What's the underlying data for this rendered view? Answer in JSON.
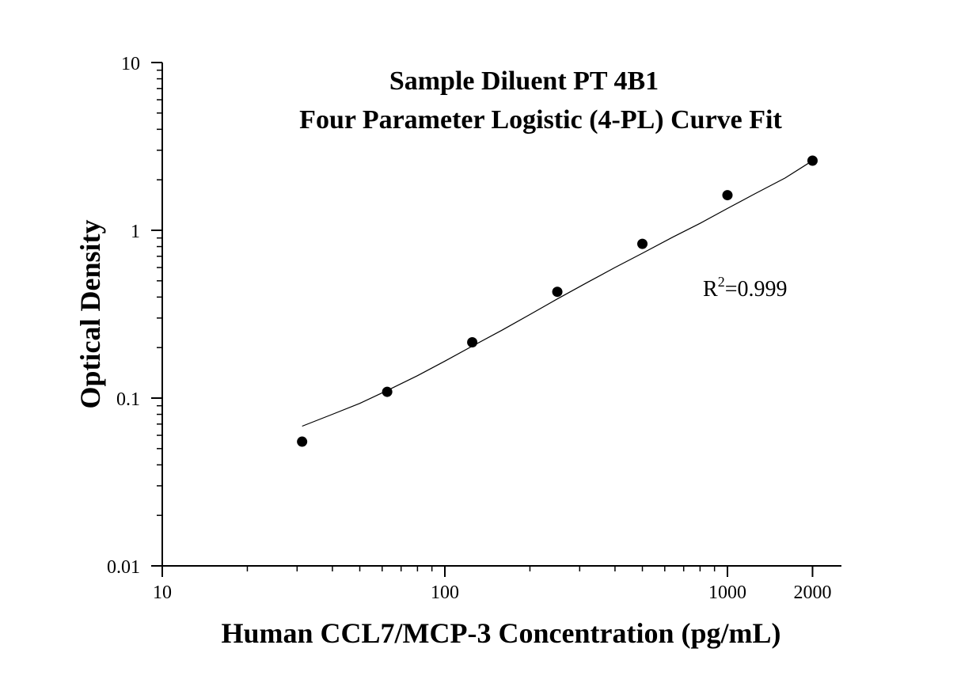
{
  "chart_data": {
    "type": "scatter",
    "title": "Sample Diluent PT 4B1",
    "subtitle": "Four Parameter Logistic (4-PL) Curve Fit",
    "xlabel": "Human CCL7/MCP-3 Concentration (pg/mL)",
    "ylabel": "Optical Density",
    "x_scale": "log",
    "y_scale": "log",
    "xlim": [
      10,
      2800
    ],
    "ylim": [
      0.01,
      10
    ],
    "x_ticks": [
      {
        "value": 10,
        "label": "10"
      },
      {
        "value": 100,
        "label": "100"
      },
      {
        "value": 1000,
        "label": "1000"
      },
      {
        "value": 2000,
        "label": "2000"
      }
    ],
    "y_ticks": [
      {
        "value": 0.01,
        "label": "0.01"
      },
      {
        "value": 0.1,
        "label": "0.1"
      },
      {
        "value": 1,
        "label": "1"
      },
      {
        "value": 10,
        "label": "10"
      }
    ],
    "grid": false,
    "series": [
      {
        "type": "scatter",
        "x": [
          31.25,
          62.5,
          125,
          250,
          500,
          1000,
          2000
        ],
        "y": [
          0.055,
          0.109,
          0.215,
          0.43,
          0.83,
          1.62,
          2.6
        ]
      },
      {
        "type": "line",
        "fit": "4-PL",
        "x": [
          31.25,
          40,
          50,
          62.5,
          80,
          100,
          125,
          160,
          200,
          250,
          320,
          400,
          500,
          640,
          800,
          1000,
          1250,
          1600,
          2000
        ],
        "y": [
          0.068,
          0.08,
          0.093,
          0.111,
          0.136,
          0.166,
          0.204,
          0.255,
          0.315,
          0.39,
          0.49,
          0.6,
          0.73,
          0.91,
          1.1,
          1.35,
          1.65,
          2.05,
          2.6
        ]
      }
    ],
    "annotation": {
      "base": "R",
      "superscript": "2",
      "rest": "=0.999"
    },
    "colors": {
      "marker": "#000000",
      "curve": "#000000",
      "axis": "#000000"
    }
  }
}
